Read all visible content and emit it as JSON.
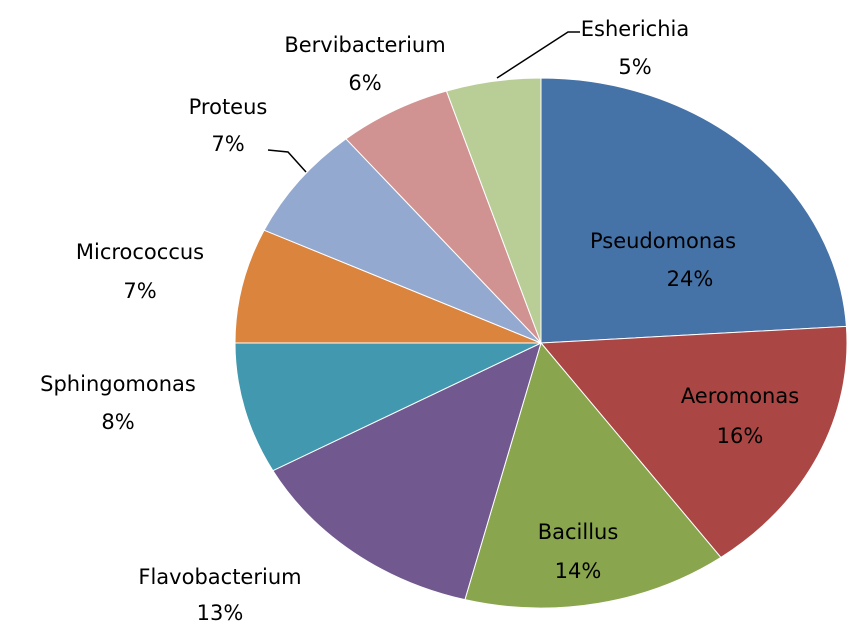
{
  "chart_data": {
    "type": "pie",
    "categories": [
      "Pseudomonas",
      "Aeromonas",
      "Bacillus",
      "Flavobacterium",
      "Sphingomonas",
      "Micrococcus",
      "Proteus",
      "Bervibacterium",
      "Esherichia"
    ],
    "values": [
      24,
      16,
      14,
      13,
      8,
      7,
      7,
      6,
      5
    ],
    "value_labels": [
      "24%",
      "16%",
      "14%",
      "13%",
      "8%",
      "7%",
      "7%",
      "6%",
      "5%"
    ],
    "colors": [
      "#4572a7",
      "#aa4643",
      "#89a54e",
      "#71588f",
      "#4198af",
      "#db843d",
      "#93a9cf",
      "#d19392",
      "#b9cd96"
    ]
  }
}
